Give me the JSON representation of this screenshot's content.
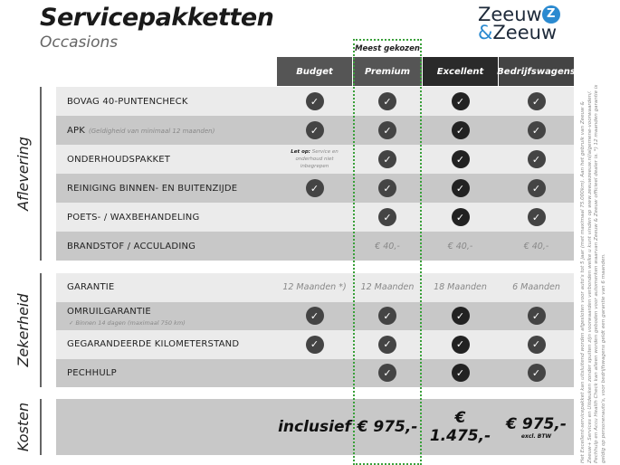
{
  "title": "Servicepakketten",
  "subtitle": "Occasions",
  "logo": {
    "line1": "Zeeuw",
    "line2_amp": "&",
    "line2": "Zeeuw",
    "mark": "Z"
  },
  "most_chosen": "Meest gekozen",
  "colors": {
    "row_light": "#ebebeb",
    "row_dark": "#c8c8c8",
    "check": "#444444",
    "check_excellent": "#222222",
    "highlight": "#3aa03a"
  },
  "columns": [
    {
      "label": "Budget",
      "bg": "#555555"
    },
    {
      "label": "Premium",
      "bg": "#555555"
    },
    {
      "label": "Excellent",
      "bg": "#2a2a2a"
    },
    {
      "label": "Bedrijfswagens",
      "bg": "#444444"
    }
  ],
  "sections": [
    {
      "label": "Aflevering",
      "rows": [
        {
          "label": "BOVAG 40-PUNTENCHECK",
          "cells": [
            "check",
            "check",
            "check",
            "check"
          ]
        },
        {
          "label": "APK",
          "note": "(Geldigheid van minimaal 12 maanden)",
          "cells": [
            "check",
            "check",
            "check",
            "check"
          ]
        },
        {
          "label": "ONDERHOUDSPAKKET",
          "cells": [
            {
              "bold": "Let op:",
              "text": " Service en onderhoud niet inbegrepen"
            },
            "check",
            "check",
            "check"
          ]
        },
        {
          "label": "REINIGING BINNEN- EN BUITENZIJDE",
          "cells": [
            "check",
            "check",
            "check",
            "check"
          ]
        },
        {
          "label": "POETS- / WAXBEHANDELING",
          "cells": [
            "",
            "check",
            "check",
            "check"
          ]
        },
        {
          "label": "BRANDSTOF / ACCULADING",
          "cells": [
            "",
            "€ 40,-",
            "€ 40,-",
            "€ 40,-"
          ]
        }
      ]
    },
    {
      "label": "Zekerheid",
      "rows": [
        {
          "label": "GARANTIE",
          "cells": [
            "12 Maanden *)",
            "12 Maanden",
            "18 Maanden",
            "6 Maanden"
          ]
        },
        {
          "label": "OMRUILGARANTIE",
          "sub": "✓  Binnen 14 dagen (maximaal 750 km)",
          "cells": [
            "check",
            "check",
            "check",
            "check"
          ]
        },
        {
          "label": "GEGARANDEERDE KILOMETERSTAND",
          "cells": [
            "check",
            "check",
            "check",
            "check"
          ]
        },
        {
          "label": "PECHHULP",
          "cells": [
            "",
            "check",
            "check",
            "check"
          ]
        }
      ]
    },
    {
      "label": "Kosten",
      "rows": [
        {
          "label": "",
          "cells": [
            {
              "price": "inclusief"
            },
            {
              "price": "€ 975,-"
            },
            {
              "price": "€ 1.475,-"
            },
            {
              "price": "€ 975,-",
              "small": "excl. BTW"
            }
          ]
        }
      ]
    }
  ],
  "footnote": "Het Excellent-servicepakket kan uitsluitend worden afgesloten voor auto's tot 5 jaar (met maximaal 75.000km). Aan het gebruik van Zeeuw & Zeeuw+ Services en Uitdeuken zonder spuiten zijn voorwaarden verbonden welke u kunt vinden op www.zeeuwzeeuw.nl/algemene-voorwaarden/. Pechhulp en Accu Health Check kan alleen worden geboden voor automerken waarvan Zeeuw & Zeeuw officieel dealer is. *) 12 maanden garantie is geldig op personenauto's, voor bedrijfswagens geldt een garantie van 6 maanden."
}
